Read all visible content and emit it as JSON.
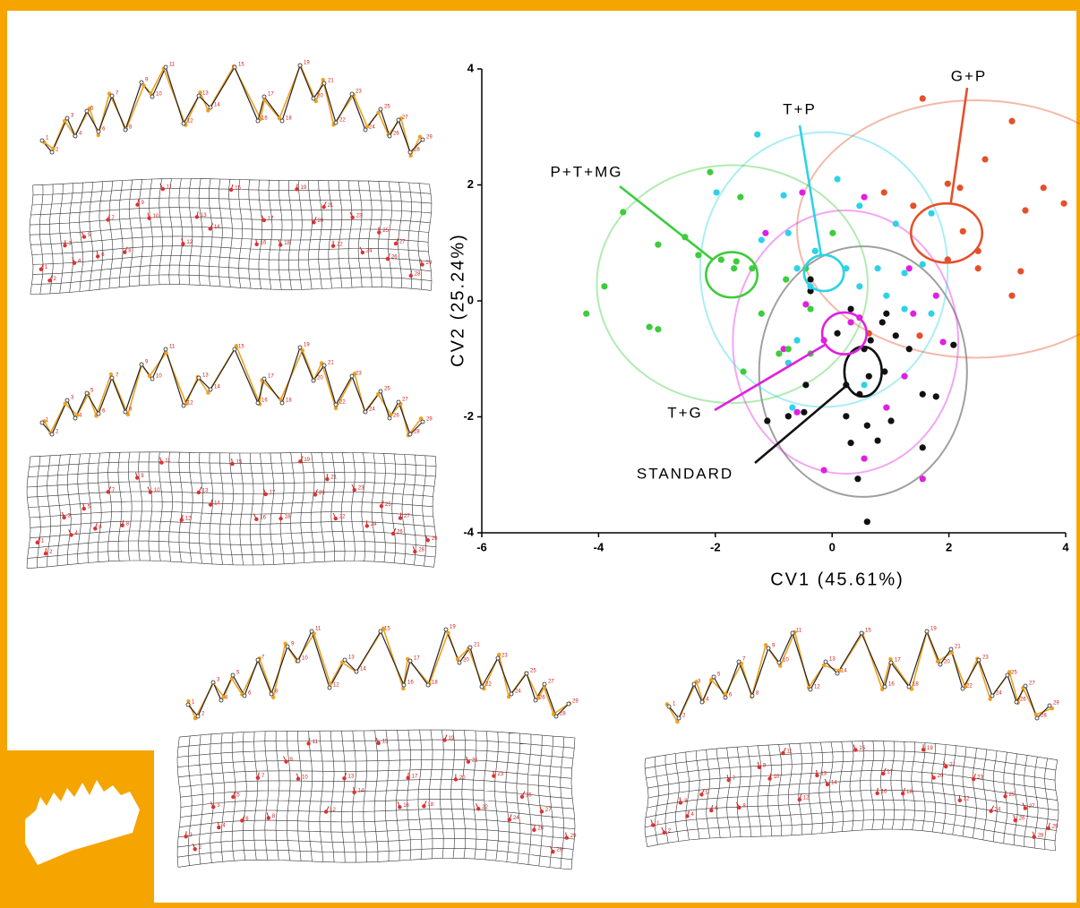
{
  "chart_data": {
    "type": "scatter",
    "x_label": "CV1 (45.61%)",
    "y_label": "CV2 (25.24%)",
    "xlim": [
      -6,
      4
    ],
    "xticks": [
      -6,
      -4,
      -2,
      0,
      2,
      4
    ],
    "ylim": [
      -4,
      4
    ],
    "yticks": [
      -4,
      -2,
      0,
      2,
      4
    ],
    "series": [
      {
        "name": "STANDARD",
        "color": "#111111",
        "x": [
          -0.37,
          -0.37,
          0.09,
          0.66,
          0.86,
          1.09,
          1.32,
          2.08,
          1.98,
          0.55,
          0.9,
          0.63,
          0.24,
          0.47,
          -0.45,
          -0.48,
          -0.75,
          -1.11,
          0.24,
          0.32,
          0.6,
          1.01,
          0.78,
          1.55,
          1.78,
          1.55,
          0.44,
          0.6,
          0.32,
          0.93
        ],
        "y": [
          0.17,
          0.37,
          -0.56,
          -0.68,
          -0.37,
          -0.6,
          -0.83,
          -0.76,
          0.71,
          -0.83,
          -1.22,
          -1.3,
          -1.45,
          -1.61,
          -1.45,
          -1.92,
          -1.99,
          -2.07,
          -1.99,
          -2.45,
          -2.15,
          -2.07,
          -2.41,
          -2.53,
          -1.65,
          -1.61,
          -3.07,
          -3.81,
          -0.14,
          -0.22
        ],
        "mean_ellipse": {
          "cx": 0.53,
          "cy": -1.22,
          "rx": 0.32,
          "ry": 0.43
        },
        "confidence_ellipse": {
          "cx": 0.53,
          "cy": -1.22,
          "rx": 1.78,
          "ry": 2.16
        }
      },
      {
        "name": "T+G",
        "color": "#e020e0",
        "x": [
          -0.51,
          0.55,
          -1.14,
          1.32,
          1.78,
          1.39,
          1.9,
          0.32,
          0.47,
          -0.14,
          -0.83,
          -0.45,
          1.24,
          -0.6,
          0.93,
          -0.14,
          0.55,
          1.55
        ],
        "y": [
          1.87,
          1.79,
          1.17,
          0.56,
          0.09,
          -0.22,
          -0.71,
          -0.37,
          -0.29,
          -0.68,
          -0.83,
          -0.06,
          -1.3,
          -1.92,
          -1.84,
          -2.92,
          -2.72,
          -3.07
        ],
        "mean_ellipse": {
          "cx": 0.21,
          "cy": -0.56,
          "rx": 0.38,
          "ry": 0.36
        },
        "confidence_ellipse": {
          "cx": 0.23,
          "cy": -0.71,
          "rx": 1.93,
          "ry": 2.27
        }
      },
      {
        "name": "T+P",
        "color": "#2ed2e6",
        "x": [
          -1.28,
          -1.98,
          -0.83,
          0.09,
          0.47,
          1.09,
          1.7,
          -0.75,
          -1.21,
          -0.29,
          0.24,
          0.78,
          1.24,
          1.55,
          -0.6,
          -0.37,
          0.93,
          1.7,
          -0.6,
          -0.75,
          0.55,
          1.24,
          0.47,
          -0.68
        ],
        "y": [
          2.87,
          1.87,
          1.82,
          2.1,
          1.64,
          1.33,
          1.51,
          1.17,
          1.05,
          0.86,
          0.56,
          0.56,
          0.48,
          0.63,
          0.56,
          0.25,
          0.09,
          -0.22,
          -0.68,
          -1.07,
          -1.45,
          -0.14,
          0.25,
          -1.84
        ],
        "mean_ellipse": {
          "cx": -0.14,
          "cy": 0.48,
          "rx": 0.34,
          "ry": 0.31
        },
        "confidence_ellipse": {
          "cx": -0.14,
          "cy": 0.54,
          "rx": 2.12,
          "ry": 2.37
        }
      },
      {
        "name": "G+P",
        "color": "#e4502a",
        "x": [
          1.55,
          3.08,
          2.62,
          1.98,
          2.19,
          3.62,
          0.89,
          1.39,
          3.31,
          3.97,
          2.24,
          2.5,
          2.5,
          3.23,
          3.08,
          1.98,
          0.63,
          1.5
        ],
        "y": [
          3.49,
          3.1,
          2.44,
          2.02,
          1.95,
          1.95,
          1.87,
          1.64,
          1.56,
          1.68,
          1.2,
          0.86,
          0.56,
          0.51,
          0.09,
          0.71,
          -0.56,
          -0.6
        ],
        "mean_ellipse": {
          "cx": 1.96,
          "cy": 1.17,
          "rx": 0.61,
          "ry": 0.51
        },
        "confidence_ellipse": {
          "cx": 2.47,
          "cy": 1.24,
          "rx": 3.07,
          "ry": 2.22
        }
      },
      {
        "name": "P+T+MG",
        "color": "#3ccc3c",
        "x": [
          -2.09,
          -1.57,
          -2.52,
          -2.98,
          -3.58,
          -3.9,
          -4.21,
          -3.13,
          -2.98,
          -2.29,
          -1.9,
          -1.64,
          -1.68,
          -1.37,
          -1.21,
          -0.79,
          -0.45,
          -0.37,
          -0.75,
          -0.37,
          -1.52,
          -0.91,
          0.01
        ],
        "y": [
          2.22,
          1.79,
          1.1,
          0.97,
          1.53,
          0.25,
          -0.22,
          -0.45,
          -0.49,
          0.79,
          0.71,
          0.68,
          0.56,
          0.56,
          -0.22,
          0.37,
          0.56,
          -0.14,
          -0.83,
          -0.91,
          -1.22,
          -0.91,
          1.17
        ],
        "mean_ellipse": {
          "cx": -1.72,
          "cy": 0.45,
          "rx": 0.44,
          "ry": 0.39
        },
        "confidence_ellipse": {
          "cx": -1.71,
          "cy": 0.29,
          "rx": 2.32,
          "ry": 2.05
        }
      }
    ]
  },
  "landmarks": [
    "1",
    "2",
    "3",
    "4",
    "5",
    "6",
    "7",
    "8",
    "9",
    "10",
    "11",
    "12",
    "13",
    "14",
    "15",
    "16",
    "17",
    "18",
    "19",
    "20",
    "21",
    "22",
    "23",
    "24",
    "25",
    "26",
    "27",
    "28",
    "29"
  ]
}
